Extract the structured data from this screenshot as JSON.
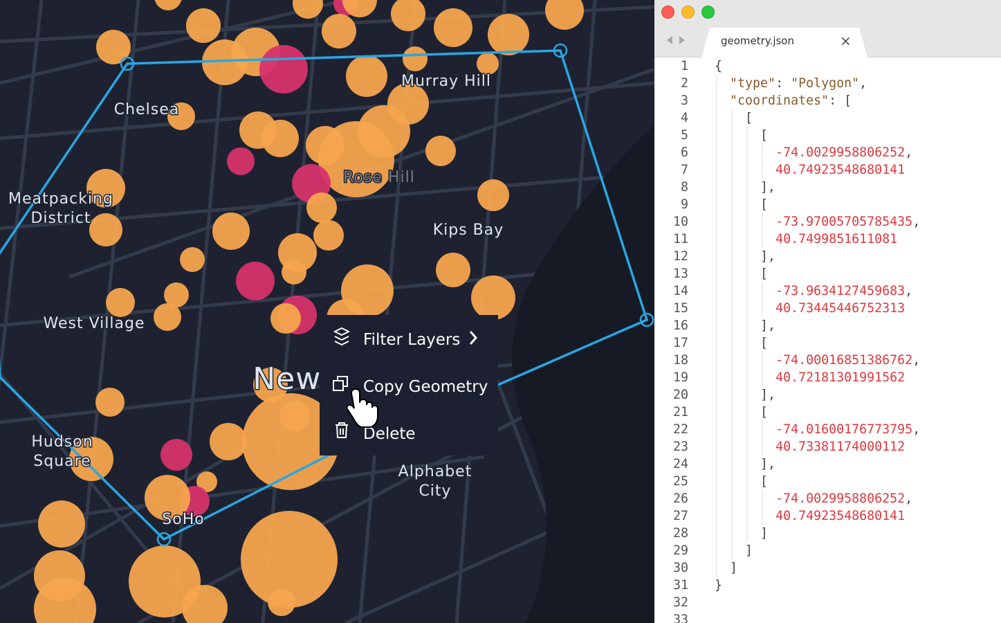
{
  "map": {
    "labels": [
      [
        "Murray Hill"
      ],
      [
        "Chelsea"
      ],
      [
        "Meatpacking",
        "District"
      ],
      [
        "Rose Hill"
      ],
      [
        "Kips Bay"
      ],
      [
        "West Village"
      ],
      [
        "New York"
      ],
      [
        "Hudson",
        "Square"
      ],
      [
        "Alphabet",
        "City"
      ],
      [
        "SoHo"
      ]
    ]
  },
  "context_menu": {
    "items": [
      "Filter Layers",
      "Copy Geometry",
      "Delete"
    ]
  },
  "editor": {
    "tab": "geometry.json",
    "tab_close": "×",
    "line_numbers": [
      1,
      2,
      3,
      4,
      5,
      6,
      7,
      8,
      9,
      10,
      11,
      12,
      13,
      14,
      15,
      16,
      17,
      18,
      19,
      20,
      21,
      22,
      23,
      24,
      25,
      26,
      27,
      28,
      29,
      30,
      31,
      32,
      33
    ],
    "lines": [
      "{",
      "  \"type\": \"Polygon\",",
      "  \"coordinates\": [",
      "    [",
      "      [",
      "        -74.0029958806252,",
      "        40.74923548680141",
      "      ],",
      "      [",
      "        -73.97005705785435,",
      "        40.7499851611081",
      "      ],",
      "      [",
      "        -73.9634127459683,",
      "        40.73445446752313",
      "      ],",
      "      [",
      "        -74.00016851386762,",
      "        40.72181301991562",
      "      ],",
      "      [",
      "        -74.01600176773795,",
      "        40.73381174000112",
      "      ],",
      "      [",
      "        -74.0029958806252,",
      "        40.74923548680141",
      "      ]",
      "    ]",
      "  ]",
      "}"
    ]
  }
}
